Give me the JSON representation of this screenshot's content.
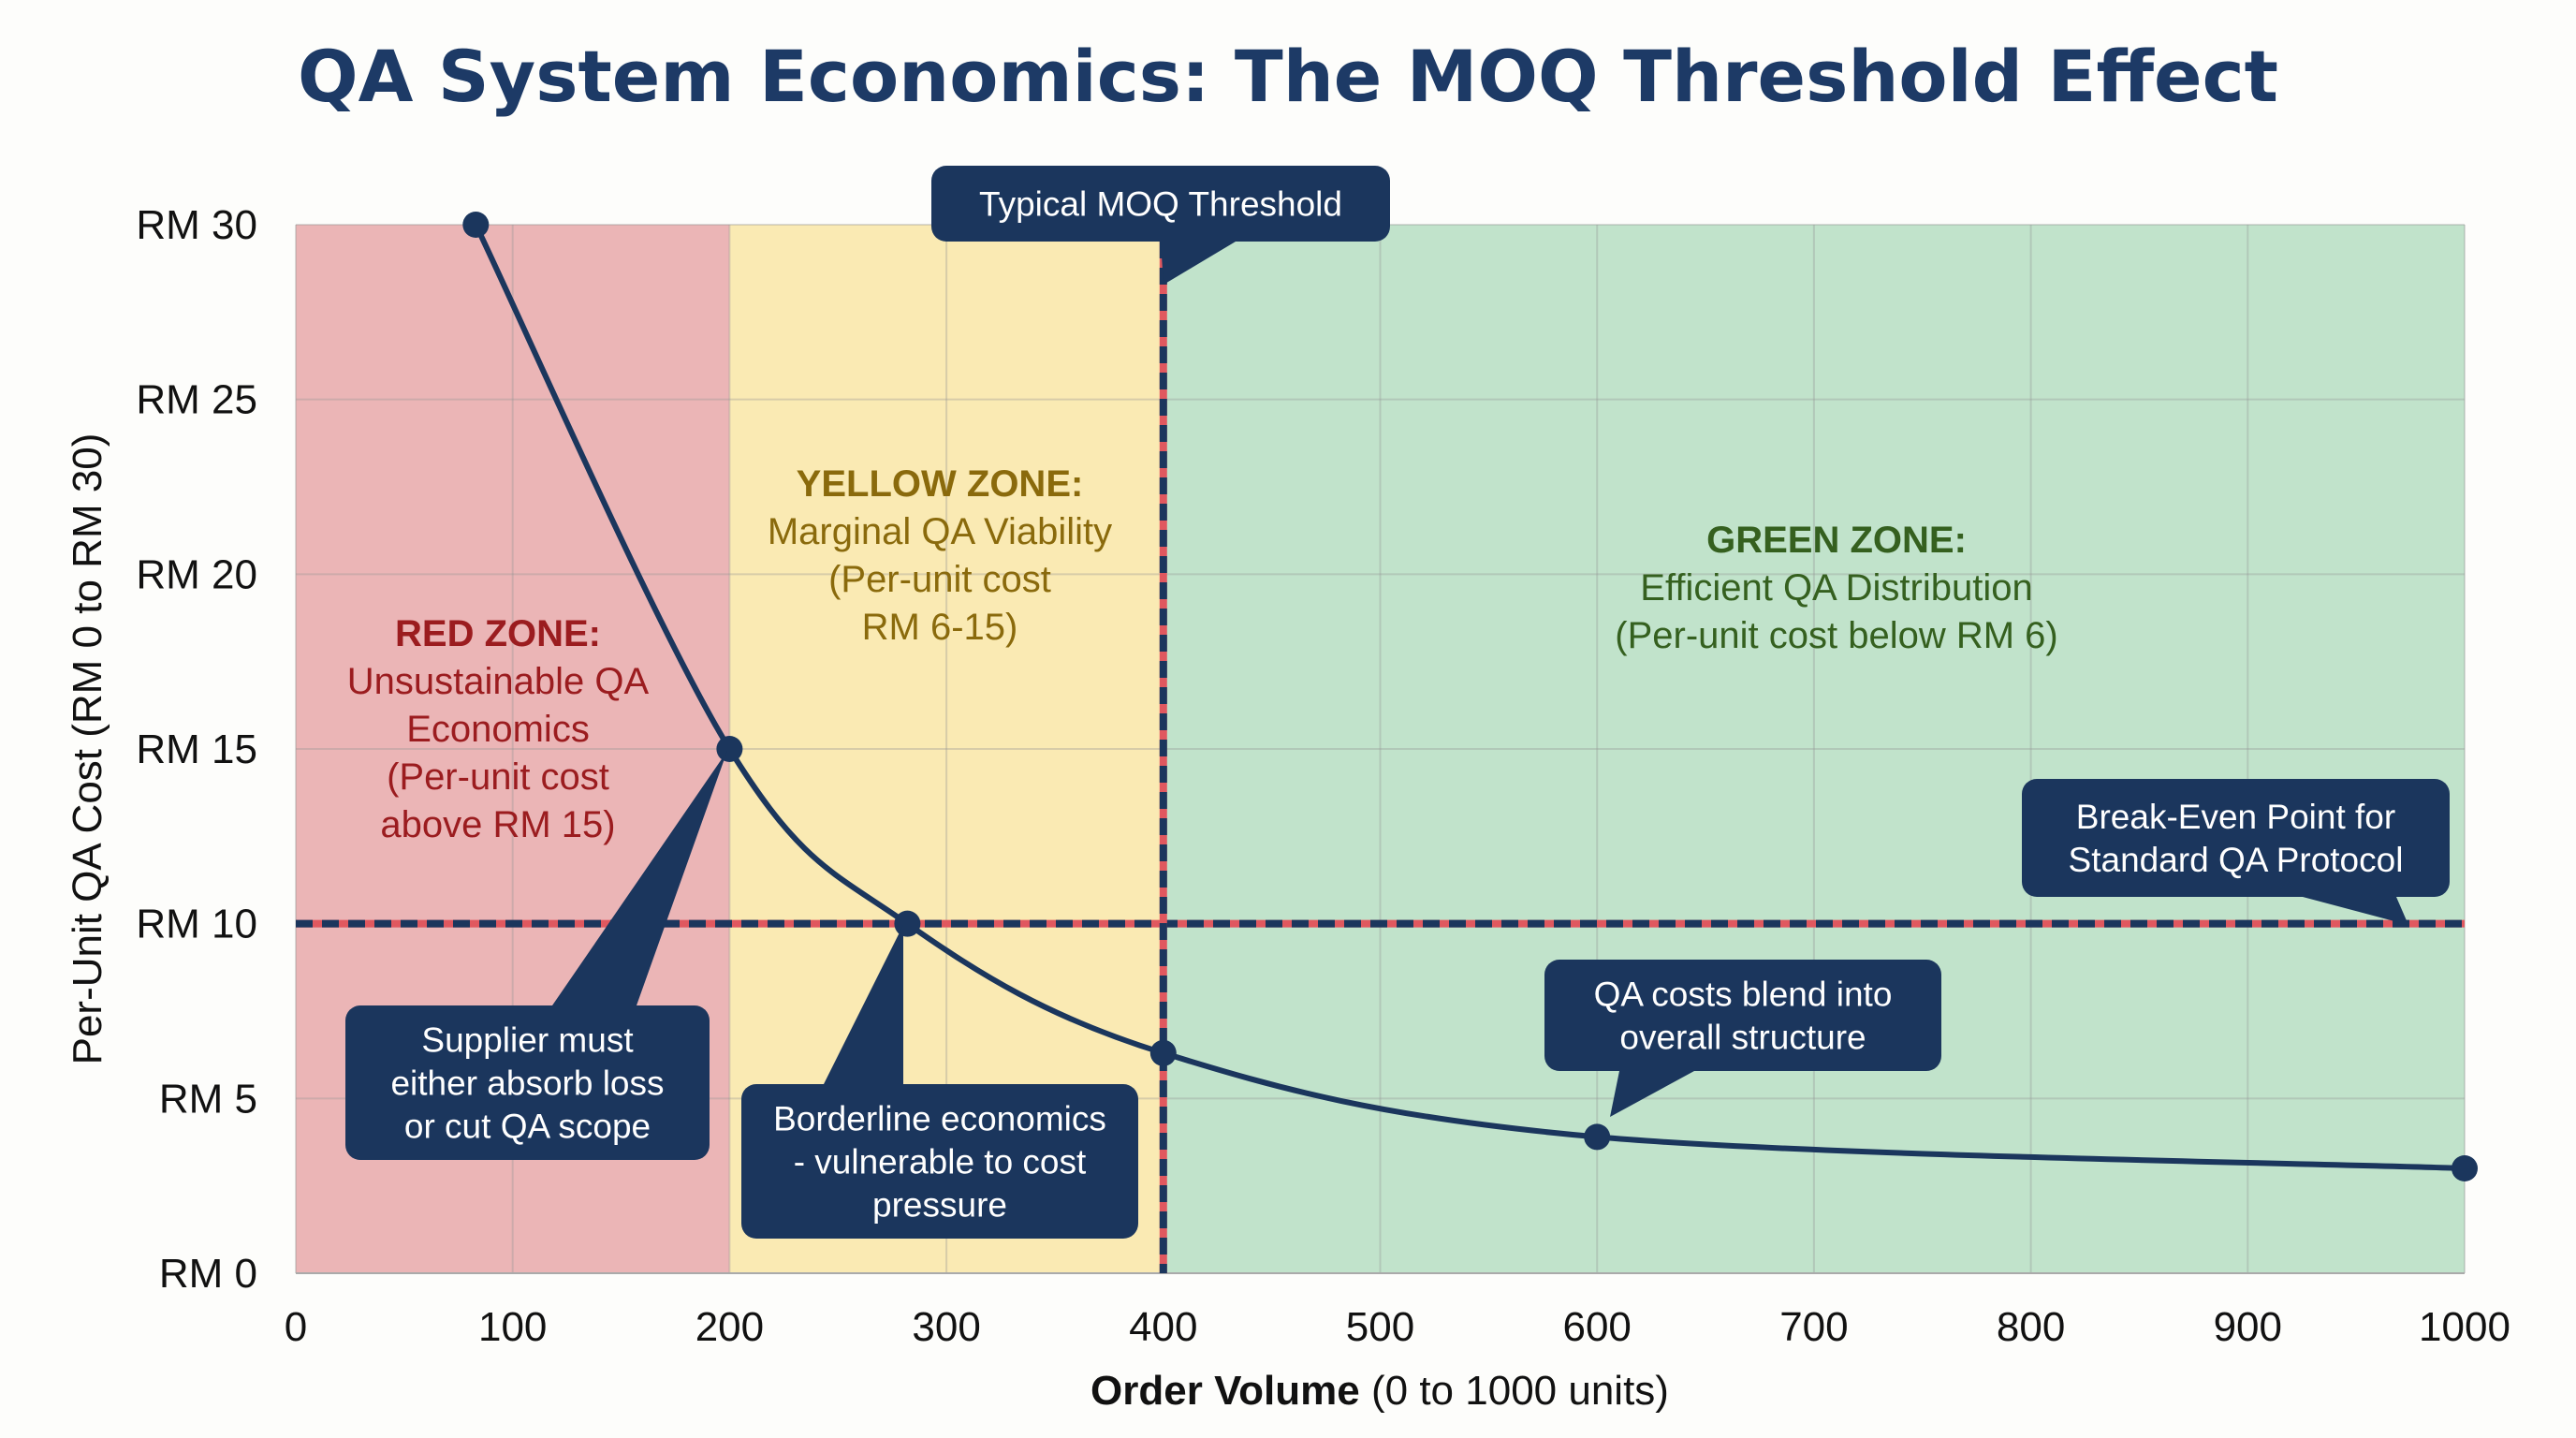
{
  "chart_data": {
    "type": "line",
    "title": "QA System Economics: The MOQ Threshold Effect",
    "xlabel_bold": "Order Volume",
    "xlabel_rest": "(0 to 1000 units)",
    "ylabel": "Per-Unit QA Cost (RM 0 to RM 30)",
    "xlim": [
      0,
      1000
    ],
    "ylim": [
      0,
      30
    ],
    "grid": true,
    "x_ticks": [
      "0",
      "100",
      "200",
      "300",
      "400",
      "500",
      "600",
      "700",
      "800",
      "900",
      "1000"
    ],
    "y_ticks": [
      "RM 0",
      "RM 5",
      "RM 10",
      "RM 15",
      "RM 20",
      "RM 25",
      "RM 30"
    ],
    "series": [
      {
        "x": [
          83,
          200,
          282,
          400,
          600,
          1000
        ],
        "y": [
          30,
          15,
          10,
          6.3,
          3.9,
          3.0
        ],
        "color": "#1b365d"
      }
    ],
    "zones": [
      {
        "from": 0,
        "to": 200,
        "color": "#ebb5b6",
        "text_color": "#9b1c1f",
        "heading": "RED ZONE:",
        "lines": [
          "Unsustainable QA",
          "Economics",
          "(Per-unit cost",
          "above RM 15)"
        ]
      },
      {
        "from": 200,
        "to": 400,
        "color": "#faeab3",
        "text_color": "#8a6a0c",
        "heading": "YELLOW ZONE:",
        "lines": [
          "Marginal QA Viability",
          "(Per-unit cost",
          "RM 6-15)"
        ]
      },
      {
        "from": 400,
        "to": 1000,
        "color": "#c1e3cb",
        "text_color": "#35601f",
        "heading": "GREEN ZONE:",
        "lines": [
          "Efficient QA Distribution",
          "(Per-unit cost below RM 6)"
        ]
      }
    ],
    "reference_lines": {
      "vertical_x": 400,
      "horizontal_y": 10,
      "navy": "#1b365d",
      "red": "#e0585f"
    },
    "annotations": [
      {
        "lines": [
          "Typical MOQ Threshold"
        ]
      },
      {
        "lines": [
          "Supplier must",
          "either absorb loss",
          "or cut QA scope"
        ]
      },
      {
        "lines": [
          "Borderline economics",
          "- vulnerable to cost",
          "pressure"
        ]
      },
      {
        "lines": [
          "QA costs blend into",
          "overall structure"
        ]
      },
      {
        "lines": [
          "Break-Even Point for",
          "Standard QA Protocol"
        ]
      }
    ]
  }
}
